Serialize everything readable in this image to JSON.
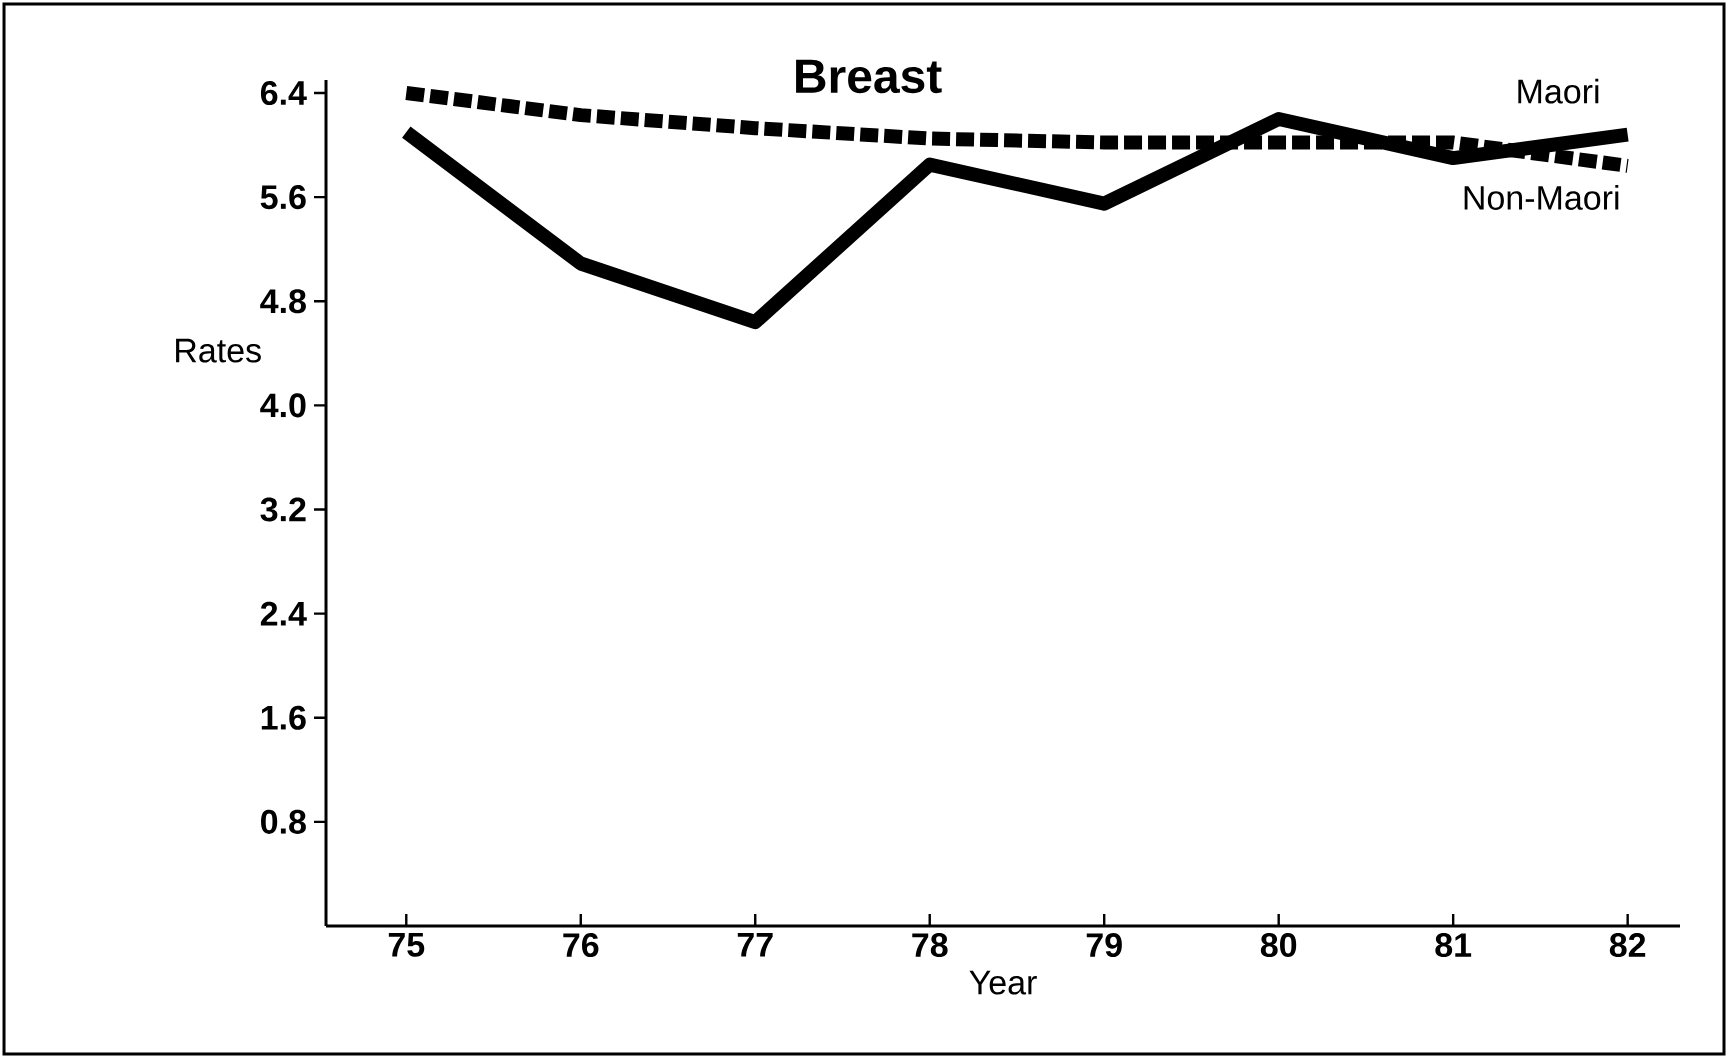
{
  "chart_data": {
    "type": "line",
    "title": "Breast",
    "xlabel": "Year",
    "ylabel": "Rates",
    "x": [
      75,
      76,
      77,
      78,
      79,
      80,
      81,
      82
    ],
    "series": [
      {
        "name": "Maori",
        "color": "#000000",
        "line_style": "solid",
        "values": [
          6.1,
          5.09,
          4.64,
          5.85,
          5.55,
          6.2,
          5.9,
          6.08
        ]
      },
      {
        "name": "Non-Maori",
        "color": "#000000",
        "line_style": "dashed",
        "values": [
          6.4,
          6.23,
          6.13,
          6.05,
          6.02,
          6.02,
          6.02,
          5.84
        ]
      }
    ],
    "xlim": [
      74.54,
      82.3
    ],
    "ylim": [
      0,
      6.5
    ],
    "xticks": [
      75,
      76,
      77,
      78,
      79,
      80,
      81,
      82
    ],
    "yticks": [
      {
        "value": 0.8,
        "label": "0.8"
      },
      {
        "value": 1.6,
        "label": "1.6"
      },
      {
        "value": 2.4,
        "label": "2.4"
      },
      {
        "value": 3.2,
        "label": "3.2"
      },
      {
        "value": 4.0,
        "label": "4.0"
      },
      {
        "value": 4.8,
        "label": "4.8"
      },
      {
        "value": 5.6,
        "label": "5.6"
      },
      {
        "value": 6.4,
        "label": "6.4"
      }
    ],
    "grid": false,
    "marker": "none"
  }
}
